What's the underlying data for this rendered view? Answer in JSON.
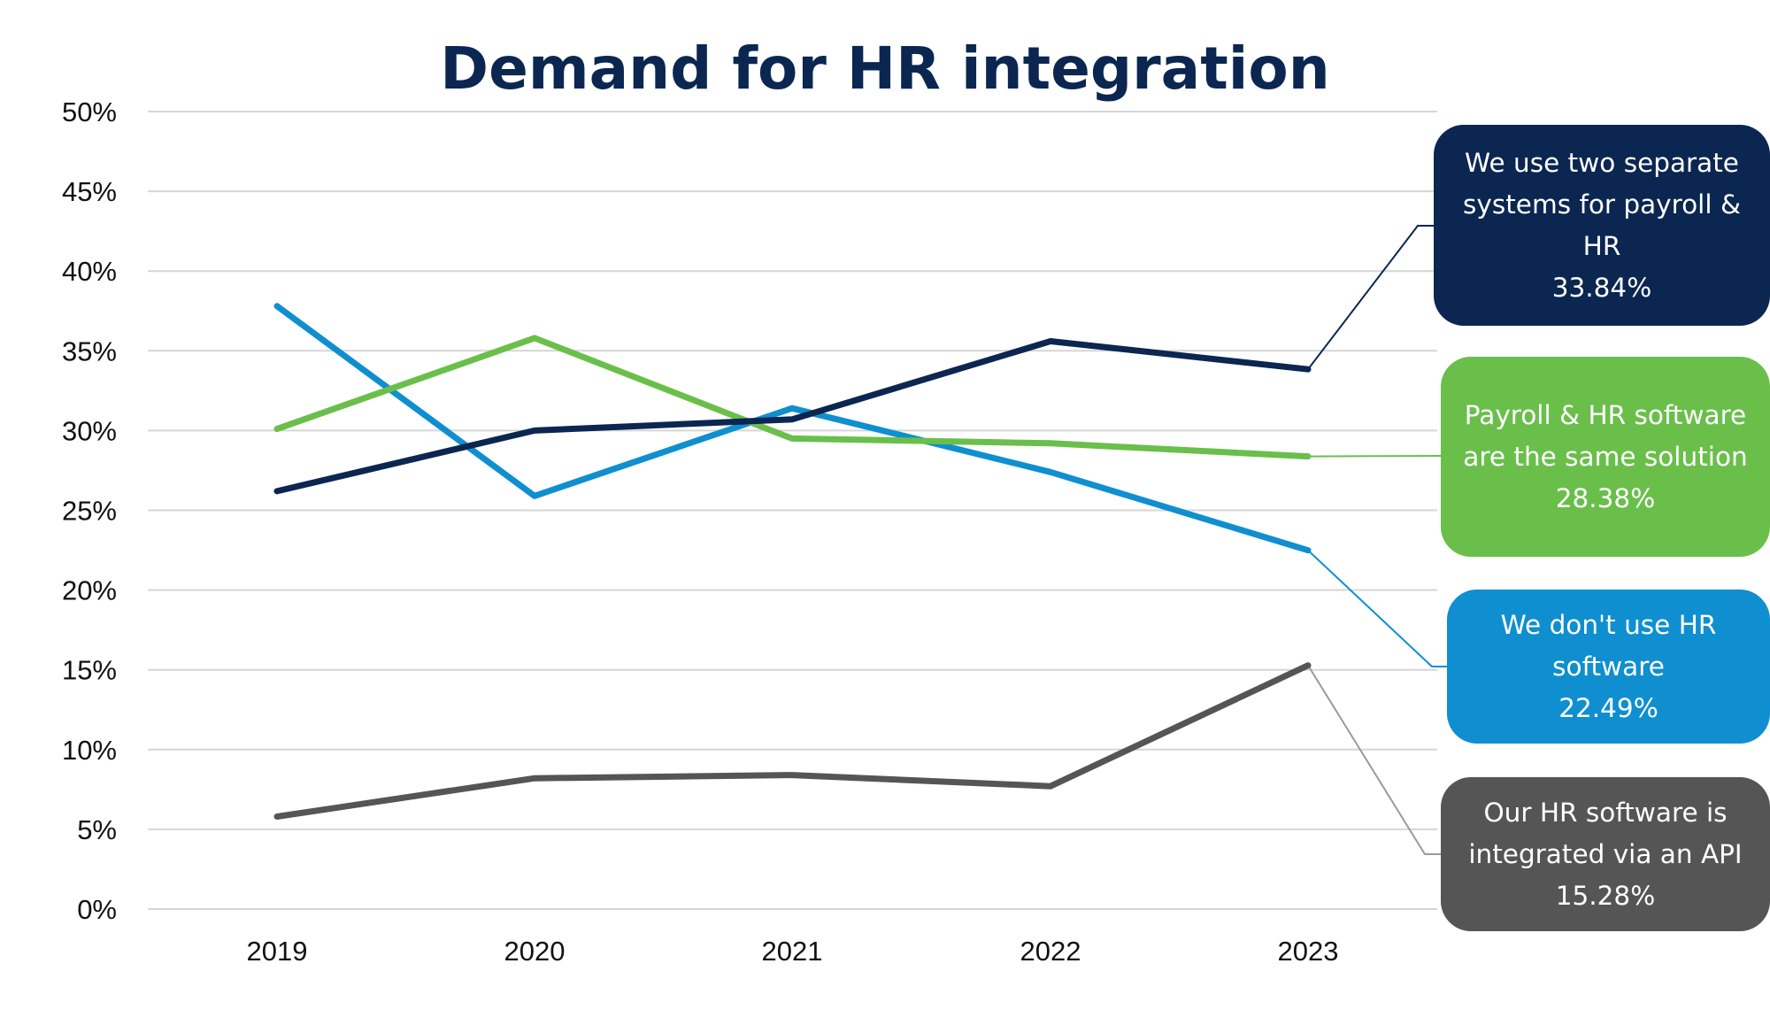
{
  "chart_data": {
    "type": "line",
    "title": "Demand for HR integration",
    "xlabel": "",
    "ylabel": "",
    "categories": [
      "2019",
      "2020",
      "2021",
      "2022",
      "2023"
    ],
    "ylim": [
      0,
      50
    ],
    "y_ticks": [
      "0%",
      "5%",
      "10%",
      "15%",
      "20%",
      "25%",
      "30%",
      "35%",
      "40%",
      "45%",
      "50%"
    ],
    "grid": "horizontal",
    "legend": "right-side callouts",
    "series": [
      {
        "name": "We use two separate systems for payroll & HR",
        "values": [
          26.2,
          30.0,
          30.7,
          35.6,
          33.84
        ],
        "callout_value": "33.84%",
        "color": "#0b2651"
      },
      {
        "name": "Payroll & HR software are the same solution",
        "values": [
          30.1,
          35.8,
          29.5,
          29.2,
          28.38
        ],
        "callout_value": "28.38%",
        "color": "#6abf4b"
      },
      {
        "name": "We don't use HR software",
        "values": [
          37.8,
          25.9,
          31.4,
          27.4,
          22.49
        ],
        "callout_value": "22.49%",
        "color": "#0f8fd0"
      },
      {
        "name": "Our HR software is integrated via an API",
        "values": [
          5.8,
          8.2,
          8.4,
          7.7,
          15.28
        ],
        "callout_value": "15.28%",
        "color": "#555555"
      }
    ],
    "title_color": "#0b2651",
    "grid_color": "#d6d6d6"
  }
}
